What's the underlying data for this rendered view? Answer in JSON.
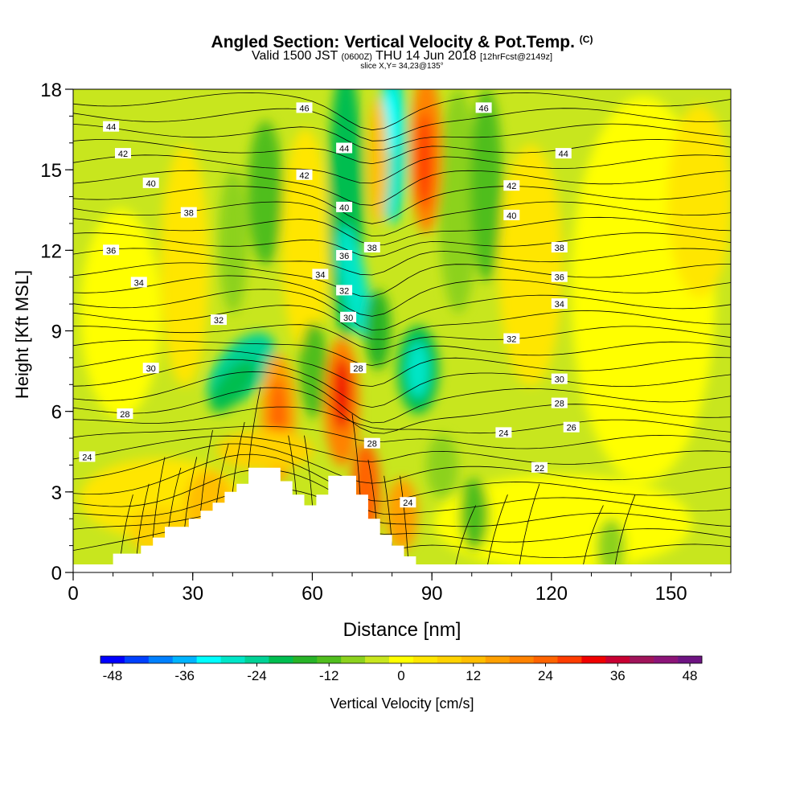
{
  "header": {
    "title": "Angled Section: Vertical Velocity & Pot.Temp.",
    "title_mark": "(C)",
    "valid_a": "Valid 1500 JST",
    "valid_utc": "(0600Z)",
    "valid_b": "THU 14 Jun 2018",
    "forecast": "[12hrFcst@2149z]",
    "slice": "slice X,Y= 34,23@135°"
  },
  "chart_data": {
    "type": "heatmap",
    "xlabel": "Distance [nm]",
    "ylabel": "Height [Kft MSL]",
    "xlim": [
      0,
      165
    ],
    "ylim": [
      0,
      18
    ],
    "xticks": [
      "0",
      "30",
      "60",
      "90",
      "120",
      "150"
    ],
    "yticks": [
      "0",
      "3",
      "6",
      "9",
      "12",
      "15",
      "18"
    ],
    "colorbar": {
      "label": "Vertical Velocity [cm/s]",
      "range": [
        -48,
        48
      ],
      "step": 4,
      "tick_labels": [
        "-48",
        "-36",
        "-24",
        "-12",
        "0",
        "12",
        "24",
        "36",
        "48"
      ],
      "colors": [
        "#0000ff",
        "#0040ff",
        "#0080ff",
        "#00b4ff",
        "#00ffff",
        "#00e6c8",
        "#00d296",
        "#00be50",
        "#28b428",
        "#50be1e",
        "#8cd21e",
        "#c8e61e",
        "#ffff00",
        "#ffe600",
        "#ffd200",
        "#ffbe00",
        "#ffa000",
        "#ff8200",
        "#ff6400",
        "#ff3c00",
        "#f00000",
        "#c80032",
        "#a0145a",
        "#8c1478",
        "#6e1482"
      ]
    },
    "terrain_profile": [
      [
        0,
        0.3
      ],
      [
        10,
        0.3
      ],
      [
        10,
        0.7
      ],
      [
        17,
        0.7
      ],
      [
        17,
        1.0
      ],
      [
        20,
        1.0
      ],
      [
        20,
        1.3
      ],
      [
        23,
        1.3
      ],
      [
        23,
        1.7
      ],
      [
        29,
        1.7
      ],
      [
        29,
        2.0
      ],
      [
        32,
        2.0
      ],
      [
        32,
        2.3
      ],
      [
        35,
        2.3
      ],
      [
        35,
        2.6
      ],
      [
        38,
        2.6
      ],
      [
        38,
        3.0
      ],
      [
        41,
        3.0
      ],
      [
        41,
        3.3
      ],
      [
        44,
        3.3
      ],
      [
        44,
        3.9
      ],
      [
        52,
        3.9
      ],
      [
        52,
        3.4
      ],
      [
        55,
        3.4
      ],
      [
        55,
        2.9
      ],
      [
        58,
        2.9
      ],
      [
        58,
        2.5
      ],
      [
        61,
        2.5
      ],
      [
        61,
        2.9
      ],
      [
        64,
        2.9
      ],
      [
        64,
        3.6
      ],
      [
        71,
        3.6
      ],
      [
        71,
        2.9
      ],
      [
        74,
        2.9
      ],
      [
        74,
        2.0
      ],
      [
        77,
        2.0
      ],
      [
        77,
        1.4
      ],
      [
        80,
        1.4
      ],
      [
        80,
        1.0
      ],
      [
        83,
        1.0
      ],
      [
        83,
        0.6
      ],
      [
        86,
        0.6
      ],
      [
        86,
        0.3
      ],
      [
        165,
        0.3
      ]
    ],
    "potential_temperature_labels": [
      {
        "text": "46",
        "x": 58,
        "y": 17.3
      },
      {
        "text": "46",
        "x": 103,
        "y": 17.3
      },
      {
        "text": "44",
        "x": 9.5,
        "y": 16.6
      },
      {
        "text": "44",
        "x": 68,
        "y": 15.8
      },
      {
        "text": "44",
        "x": 123,
        "y": 15.6
      },
      {
        "text": "42",
        "x": 12.5,
        "y": 15.6
      },
      {
        "text": "42",
        "x": 58,
        "y": 14.8
      },
      {
        "text": "42",
        "x": 110,
        "y": 14.4
      },
      {
        "text": "40",
        "x": 19.5,
        "y": 14.5
      },
      {
        "text": "40",
        "x": 68,
        "y": 13.6
      },
      {
        "text": "40",
        "x": 110,
        "y": 13.3
      },
      {
        "text": "38",
        "x": 29,
        "y": 13.4
      },
      {
        "text": "38",
        "x": 75,
        "y": 12.1
      },
      {
        "text": "38",
        "x": 122,
        "y": 12.1
      },
      {
        "text": "36",
        "x": 9.5,
        "y": 12.0
      },
      {
        "text": "36",
        "x": 68,
        "y": 11.8
      },
      {
        "text": "36",
        "x": 122,
        "y": 11.0
      },
      {
        "text": "34",
        "x": 16.5,
        "y": 10.8
      },
      {
        "text": "34",
        "x": 62,
        "y": 11.1
      },
      {
        "text": "34",
        "x": 122,
        "y": 10.0
      },
      {
        "text": "32",
        "x": 36.5,
        "y": 9.4
      },
      {
        "text": "32",
        "x": 68,
        "y": 10.5
      },
      {
        "text": "32",
        "x": 110,
        "y": 8.7
      },
      {
        "text": "30",
        "x": 19.5,
        "y": 7.6
      },
      {
        "text": "30",
        "x": 69,
        "y": 9.5
      },
      {
        "text": "30",
        "x": 122,
        "y": 7.2
      },
      {
        "text": "28",
        "x": 13,
        "y": 5.9
      },
      {
        "text": "28",
        "x": 71.5,
        "y": 7.6
      },
      {
        "text": "28",
        "x": 75,
        "y": 4.8
      },
      {
        "text": "28",
        "x": 122,
        "y": 6.3
      },
      {
        "text": "26",
        "x": 125,
        "y": 5.4
      },
      {
        "text": "24",
        "x": 3.5,
        "y": 4.3
      },
      {
        "text": "24",
        "x": 108,
        "y": 5.2
      },
      {
        "text": "24",
        "x": 84,
        "y": 2.6
      },
      {
        "text": "22",
        "x": 117,
        "y": 3.9
      }
    ]
  }
}
